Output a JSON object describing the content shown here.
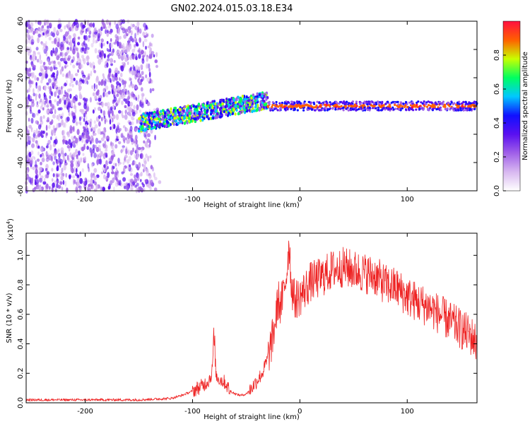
{
  "figure_title": "GN02.2024.015.03.18.E34",
  "chart_data": [
    {
      "type": "heatmap",
      "title": "",
      "xlabel": "Height of straight line (km)",
      "ylabel": "Frequency (Hz)",
      "xlim": [
        -255,
        165
      ],
      "ylim": [
        -60,
        60
      ],
      "xticks": [
        -200,
        -100,
        0,
        100
      ],
      "yticks": [
        -60,
        -40,
        -20,
        0,
        20,
        40,
        60
      ],
      "colorbar": {
        "label": "Normalized spectral amplitude",
        "range": [
          0.0,
          1.0
        ],
        "ticks": [
          "0.0",
          "0.2",
          "0.4",
          "0.6",
          "0.8"
        ],
        "colormap": "rainbow",
        "colors": [
          "#ffffff",
          "#d8b8f0",
          "#a060e8",
          "#5a10f0",
          "#1010ff",
          "#00c8ff",
          "#00ff60",
          "#c8ff00",
          "#ff6000",
          "#ff1040"
        ]
      },
      "regions": [
        {
          "x_range": [
            -255,
            -130
          ],
          "freq_range": [
            -60,
            60
          ],
          "amplitude": 0.12,
          "pattern": "scattered noise"
        },
        {
          "x_range": [
            -150,
            -30
          ],
          "freq_center": [
            -12,
            4
          ],
          "freq_halfwidth": 6,
          "amplitude": 0.45
        },
        {
          "x_range": [
            -30,
            165
          ],
          "freq_center": [
            0,
            0
          ],
          "freq_halfwidth": 2,
          "amplitude": 0.85
        }
      ]
    },
    {
      "type": "line",
      "title": "",
      "xlabel": "Height of straight line (km)",
      "ylabel": "SNR (10 * v/v)",
      "y_multiplier": "(x10",
      "y_multiplier_exp": "4",
      "y_multiplier_close": ")",
      "xlim": [
        -255,
        165
      ],
      "ylim": [
        0,
        1.15
      ],
      "xticks": [
        -200,
        -100,
        0,
        100
      ],
      "yticks": [
        "0.0",
        "0.2",
        "0.4",
        "0.6",
        "0.8",
        "1.0"
      ],
      "color": "#ee2222",
      "series": [
        {
          "x": [
            -255,
            -230,
            -200,
            -150,
            -120,
            -110,
            -100,
            -90,
            -85,
            -82,
            -80,
            -78,
            -75,
            -70,
            -65,
            -60,
            -55,
            -50,
            -45,
            -40,
            -35,
            -30,
            -25,
            -22,
            -20,
            -18,
            -15,
            -12,
            -10,
            -8,
            -5,
            0,
            10,
            20,
            30,
            40,
            50,
            60,
            70,
            80,
            90,
            100,
            110,
            120,
            130,
            140,
            150,
            160,
            165
          ],
          "y": [
            0.02,
            0.02,
            0.02,
            0.02,
            0.03,
            0.05,
            0.08,
            0.12,
            0.15,
            0.2,
            0.42,
            0.18,
            0.16,
            0.14,
            0.08,
            0.06,
            0.05,
            0.06,
            0.1,
            0.15,
            0.2,
            0.3,
            0.45,
            0.6,
            0.7,
            0.65,
            0.75,
            0.9,
            1.1,
            0.8,
            0.7,
            0.72,
            0.82,
            0.85,
            0.9,
            0.92,
            0.9,
            0.88,
            0.86,
            0.8,
            0.78,
            0.72,
            0.68,
            0.65,
            0.6,
            0.55,
            0.5,
            0.45,
            0.4
          ]
        }
      ]
    }
  ]
}
